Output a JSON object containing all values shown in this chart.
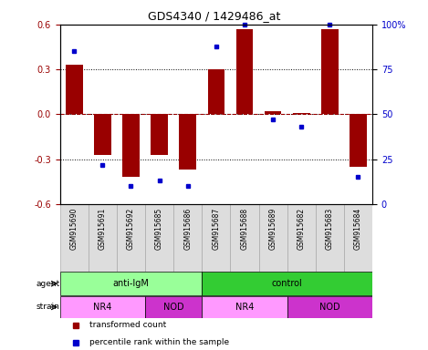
{
  "title": "GDS4340 / 1429486_at",
  "samples": [
    "GSM915690",
    "GSM915691",
    "GSM915692",
    "GSM915685",
    "GSM915686",
    "GSM915687",
    "GSM915688",
    "GSM915689",
    "GSM915682",
    "GSM915683",
    "GSM915684"
  ],
  "bar_values": [
    0.33,
    -0.27,
    -0.42,
    -0.27,
    -0.37,
    0.3,
    0.57,
    0.02,
    0.01,
    0.57,
    -0.35
  ],
  "percentile_values": [
    85,
    22,
    10,
    13,
    10,
    88,
    100,
    47,
    43,
    100,
    15
  ],
  "bar_color": "#990000",
  "dot_color": "#0000cc",
  "ylim": [
    -0.6,
    0.6
  ],
  "yticks": [
    -0.6,
    -0.3,
    0.0,
    0.3,
    0.6
  ],
  "y2ticks": [
    0,
    25,
    50,
    75,
    100
  ],
  "y2ticklabels": [
    "0",
    "25",
    "50",
    "75",
    "100%"
  ],
  "dotted_lines": [
    -0.3,
    0.0,
    0.3
  ],
  "agent_labels": [
    {
      "label": "anti-IgM",
      "start": 0,
      "end": 5,
      "color": "#99ff99"
    },
    {
      "label": "control",
      "start": 5,
      "end": 11,
      "color": "#33cc33"
    }
  ],
  "strain_labels": [
    {
      "label": "NR4",
      "start": 0,
      "end": 3,
      "color": "#ff99ff"
    },
    {
      "label": "NOD",
      "start": 3,
      "end": 5,
      "color": "#cc33cc"
    },
    {
      "label": "NR4",
      "start": 5,
      "end": 8,
      "color": "#ff99ff"
    },
    {
      "label": "NOD",
      "start": 8,
      "end": 11,
      "color": "#cc33cc"
    }
  ],
  "legend_items": [
    {
      "label": "transformed count",
      "color": "#990000"
    },
    {
      "label": "percentile rank within the sample",
      "color": "#0000cc"
    }
  ],
  "agent_row_label": "agent",
  "strain_row_label": "strain"
}
